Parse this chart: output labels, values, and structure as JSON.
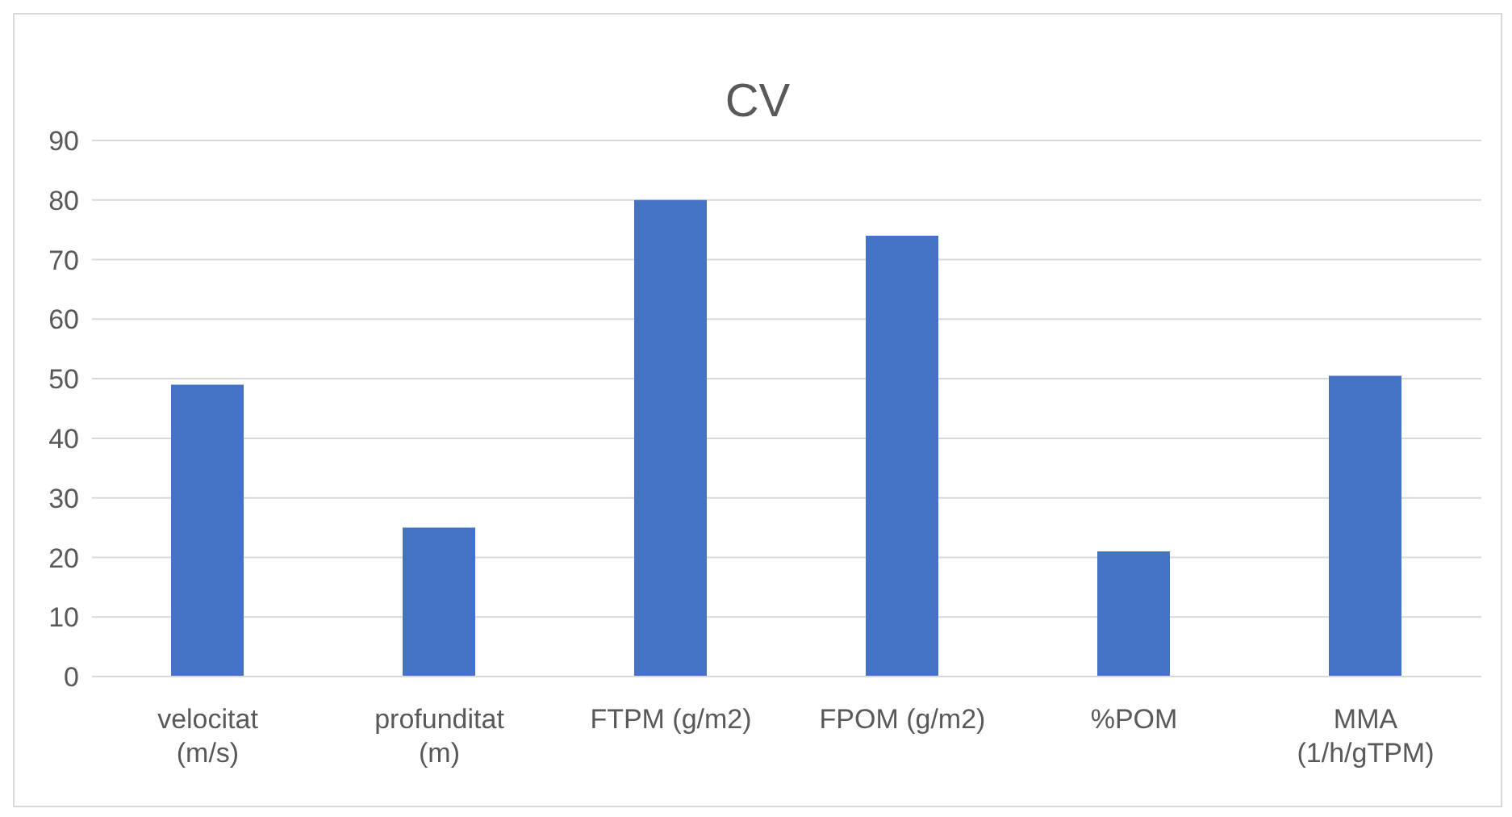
{
  "chart_data": {
    "type": "bar",
    "title": "CV",
    "categories": [
      "velocitat (m/s)",
      "profunditat (m)",
      "FTPM (g/m2)",
      "FPOM (g/m2)",
      "%POM",
      "MMA (1/h/gTPM)"
    ],
    "values": [
      49,
      25,
      80,
      74,
      21,
      50.5
    ],
    "color": "#4472c4",
    "ylim": [
      0,
      90
    ],
    "yticks": [
      0,
      10,
      20,
      30,
      40,
      50,
      60,
      70,
      80,
      90
    ],
    "grid": "y",
    "legend": false
  }
}
